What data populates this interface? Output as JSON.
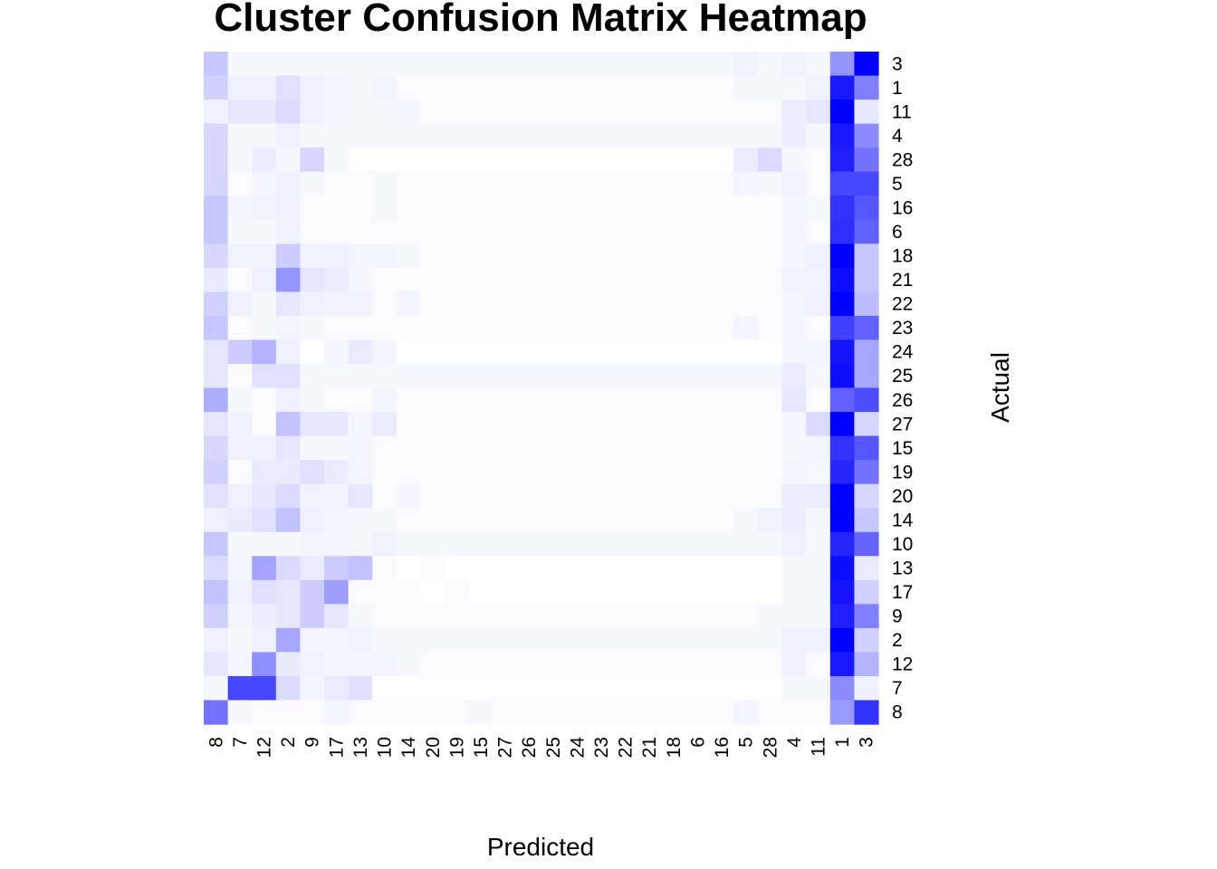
{
  "chart_data": {
    "type": "heatmap",
    "title": "Cluster Confusion Matrix Heatmap",
    "xlabel": "Predicted",
    "ylabel": "Actual",
    "x_categories": [
      "8",
      "7",
      "12",
      "2",
      "9",
      "17",
      "13",
      "10",
      "14",
      "20",
      "19",
      "15",
      "27",
      "26",
      "25",
      "24",
      "23",
      "22",
      "21",
      "18",
      "6",
      "16",
      "5",
      "28",
      "4",
      "11",
      "1",
      "3"
    ],
    "y_categories": [
      "3",
      "1",
      "11",
      "4",
      "28",
      "5",
      "16",
      "6",
      "18",
      "21",
      "22",
      "23",
      "24",
      "25",
      "26",
      "27",
      "15",
      "19",
      "20",
      "14",
      "10",
      "13",
      "17",
      "9",
      "2",
      "12",
      "7",
      "8"
    ],
    "color_scale": {
      "low": "#ffffff",
      "high": "#0000ff",
      "min": 0,
      "max": 1
    },
    "values": [
      [
        0.22,
        0.03,
        0.03,
        0.03,
        0.03,
        0.03,
        0.03,
        0.03,
        0.03,
        0.03,
        0.03,
        0.03,
        0.03,
        0.03,
        0.03,
        0.03,
        0.03,
        0.03,
        0.03,
        0.03,
        0.03,
        0.03,
        0.05,
        0.03,
        0.05,
        0.03,
        0.42,
        1.0
      ],
      [
        0.18,
        0.06,
        0.06,
        0.12,
        0.06,
        0.04,
        0.03,
        0.04,
        0.02,
        0.02,
        0.02,
        0.02,
        0.02,
        0.02,
        0.02,
        0.02,
        0.02,
        0.02,
        0.02,
        0.02,
        0.02,
        0.02,
        0.03,
        0.03,
        0.03,
        0.05,
        0.9,
        0.5
      ],
      [
        0.06,
        0.1,
        0.1,
        0.14,
        0.06,
        0.04,
        0.03,
        0.03,
        0.04,
        0.02,
        0.02,
        0.02,
        0.02,
        0.02,
        0.02,
        0.02,
        0.02,
        0.02,
        0.02,
        0.02,
        0.02,
        0.02,
        0.02,
        0.02,
        0.07,
        0.1,
        1.0,
        0.1
      ],
      [
        0.16,
        0.03,
        0.03,
        0.06,
        0.03,
        0.03,
        0.03,
        0.03,
        0.03,
        0.03,
        0.03,
        0.03,
        0.03,
        0.03,
        0.03,
        0.03,
        0.03,
        0.03,
        0.03,
        0.03,
        0.03,
        0.03,
        0.03,
        0.03,
        0.07,
        0.03,
        0.9,
        0.45
      ],
      [
        0.16,
        0.03,
        0.07,
        0.03,
        0.16,
        0.03,
        0.0,
        0.0,
        0.0,
        0.0,
        0.0,
        0.0,
        0.0,
        0.0,
        0.0,
        0.0,
        0.0,
        0.0,
        0.0,
        0.0,
        0.0,
        0.0,
        0.08,
        0.14,
        0.03,
        0.02,
        0.88,
        0.55
      ],
      [
        0.16,
        0.02,
        0.04,
        0.06,
        0.03,
        0.02,
        0.02,
        0.03,
        0.02,
        0.02,
        0.02,
        0.02,
        0.02,
        0.02,
        0.02,
        0.02,
        0.02,
        0.02,
        0.02,
        0.02,
        0.02,
        0.02,
        0.04,
        0.03,
        0.05,
        0.02,
        0.72,
        0.72
      ],
      [
        0.22,
        0.04,
        0.05,
        0.06,
        0.02,
        0.02,
        0.02,
        0.03,
        0.02,
        0.02,
        0.02,
        0.02,
        0.02,
        0.02,
        0.02,
        0.02,
        0.02,
        0.02,
        0.02,
        0.02,
        0.02,
        0.02,
        0.02,
        0.02,
        0.04,
        0.03,
        0.8,
        0.66
      ],
      [
        0.22,
        0.03,
        0.03,
        0.05,
        0.02,
        0.02,
        0.02,
        0.02,
        0.02,
        0.02,
        0.02,
        0.02,
        0.02,
        0.02,
        0.02,
        0.02,
        0.02,
        0.02,
        0.02,
        0.02,
        0.02,
        0.02,
        0.02,
        0.02,
        0.04,
        0.02,
        0.82,
        0.62
      ],
      [
        0.16,
        0.05,
        0.05,
        0.2,
        0.05,
        0.06,
        0.04,
        0.04,
        0.03,
        0.02,
        0.02,
        0.02,
        0.02,
        0.02,
        0.02,
        0.02,
        0.02,
        0.02,
        0.02,
        0.02,
        0.02,
        0.02,
        0.02,
        0.02,
        0.04,
        0.06,
        1.0,
        0.22
      ],
      [
        0.08,
        0.02,
        0.06,
        0.42,
        0.1,
        0.08,
        0.03,
        0.02,
        0.02,
        0.02,
        0.02,
        0.02,
        0.02,
        0.02,
        0.02,
        0.02,
        0.02,
        0.02,
        0.02,
        0.02,
        0.02,
        0.02,
        0.02,
        0.02,
        0.05,
        0.05,
        0.95,
        0.22
      ],
      [
        0.18,
        0.06,
        0.03,
        0.1,
        0.06,
        0.05,
        0.05,
        0.02,
        0.04,
        0.02,
        0.02,
        0.02,
        0.02,
        0.02,
        0.02,
        0.02,
        0.02,
        0.02,
        0.02,
        0.02,
        0.02,
        0.02,
        0.02,
        0.02,
        0.04,
        0.06,
        1.0,
        0.26
      ],
      [
        0.22,
        0.02,
        0.03,
        0.04,
        0.03,
        0.02,
        0.02,
        0.02,
        0.02,
        0.02,
        0.02,
        0.02,
        0.02,
        0.02,
        0.02,
        0.02,
        0.02,
        0.02,
        0.02,
        0.02,
        0.02,
        0.02,
        0.04,
        0.02,
        0.04,
        0.02,
        0.75,
        0.62
      ],
      [
        0.1,
        0.2,
        0.3,
        0.06,
        0.0,
        0.04,
        0.08,
        0.04,
        0.0,
        0.0,
        0.0,
        0.0,
        0.0,
        0.0,
        0.0,
        0.0,
        0.0,
        0.0,
        0.0,
        0.0,
        0.0,
        0.0,
        0.0,
        0.0,
        0.04,
        0.04,
        0.92,
        0.35
      ],
      [
        0.1,
        0.02,
        0.12,
        0.12,
        0.03,
        0.03,
        0.03,
        0.03,
        0.03,
        0.03,
        0.03,
        0.03,
        0.03,
        0.03,
        0.03,
        0.03,
        0.03,
        0.03,
        0.03,
        0.03,
        0.03,
        0.03,
        0.03,
        0.03,
        0.08,
        0.03,
        0.95,
        0.35
      ],
      [
        0.32,
        0.03,
        0.02,
        0.06,
        0.03,
        0.02,
        0.02,
        0.04,
        0.02,
        0.02,
        0.02,
        0.02,
        0.02,
        0.02,
        0.02,
        0.02,
        0.02,
        0.02,
        0.02,
        0.02,
        0.02,
        0.02,
        0.02,
        0.02,
        0.1,
        0.02,
        0.62,
        0.7
      ],
      [
        0.1,
        0.06,
        0.02,
        0.24,
        0.1,
        0.1,
        0.04,
        0.08,
        0.02,
        0.02,
        0.02,
        0.02,
        0.02,
        0.02,
        0.02,
        0.02,
        0.02,
        0.02,
        0.02,
        0.02,
        0.02,
        0.02,
        0.02,
        0.02,
        0.04,
        0.14,
        1.0,
        0.16
      ],
      [
        0.16,
        0.06,
        0.06,
        0.1,
        0.03,
        0.03,
        0.04,
        0.02,
        0.02,
        0.02,
        0.02,
        0.02,
        0.02,
        0.02,
        0.02,
        0.02,
        0.02,
        0.02,
        0.02,
        0.02,
        0.02,
        0.02,
        0.02,
        0.02,
        0.03,
        0.04,
        0.8,
        0.66
      ],
      [
        0.18,
        0.02,
        0.08,
        0.08,
        0.12,
        0.08,
        0.04,
        0.02,
        0.02,
        0.02,
        0.02,
        0.02,
        0.02,
        0.02,
        0.02,
        0.02,
        0.02,
        0.02,
        0.02,
        0.02,
        0.02,
        0.02,
        0.02,
        0.02,
        0.04,
        0.03,
        0.85,
        0.55
      ],
      [
        0.12,
        0.06,
        0.1,
        0.14,
        0.05,
        0.05,
        0.1,
        0.02,
        0.04,
        0.02,
        0.02,
        0.02,
        0.02,
        0.02,
        0.02,
        0.02,
        0.02,
        0.02,
        0.02,
        0.02,
        0.02,
        0.02,
        0.02,
        0.02,
        0.07,
        0.07,
        1.0,
        0.16
      ],
      [
        0.06,
        0.08,
        0.12,
        0.24,
        0.06,
        0.04,
        0.03,
        0.03,
        0.02,
        0.02,
        0.02,
        0.02,
        0.02,
        0.02,
        0.02,
        0.02,
        0.02,
        0.02,
        0.02,
        0.02,
        0.02,
        0.02,
        0.03,
        0.05,
        0.07,
        0.03,
        1.0,
        0.22
      ],
      [
        0.22,
        0.03,
        0.03,
        0.03,
        0.04,
        0.04,
        0.03,
        0.05,
        0.03,
        0.03,
        0.03,
        0.03,
        0.03,
        0.03,
        0.03,
        0.03,
        0.03,
        0.03,
        0.03,
        0.03,
        0.03,
        0.03,
        0.03,
        0.03,
        0.06,
        0.03,
        0.85,
        0.6
      ],
      [
        0.14,
        0.04,
        0.36,
        0.14,
        0.08,
        0.2,
        0.24,
        0.02,
        0.0,
        0.02,
        0.0,
        0.0,
        0.0,
        0.0,
        0.0,
        0.0,
        0.0,
        0.0,
        0.0,
        0.0,
        0.0,
        0.0,
        0.0,
        0.0,
        0.03,
        0.03,
        0.95,
        0.08
      ],
      [
        0.24,
        0.06,
        0.12,
        0.1,
        0.2,
        0.38,
        0.02,
        0.02,
        0.02,
        0.0,
        0.02,
        0.0,
        0.0,
        0.0,
        0.0,
        0.0,
        0.0,
        0.0,
        0.0,
        0.0,
        0.0,
        0.0,
        0.0,
        0.0,
        0.03,
        0.03,
        0.92,
        0.18
      ],
      [
        0.18,
        0.04,
        0.07,
        0.1,
        0.2,
        0.1,
        0.03,
        0.02,
        0.02,
        0.02,
        0.02,
        0.02,
        0.02,
        0.02,
        0.02,
        0.02,
        0.02,
        0.02,
        0.02,
        0.02,
        0.02,
        0.02,
        0.02,
        0.03,
        0.03,
        0.03,
        0.88,
        0.5
      ],
      [
        0.06,
        0.03,
        0.06,
        0.35,
        0.04,
        0.04,
        0.05,
        0.03,
        0.03,
        0.03,
        0.03,
        0.03,
        0.03,
        0.03,
        0.03,
        0.03,
        0.03,
        0.03,
        0.03,
        0.03,
        0.03,
        0.03,
        0.03,
        0.03,
        0.06,
        0.06,
        1.0,
        0.18
      ],
      [
        0.1,
        0.04,
        0.44,
        0.08,
        0.05,
        0.04,
        0.04,
        0.04,
        0.03,
        0.02,
        0.02,
        0.02,
        0.02,
        0.02,
        0.02,
        0.02,
        0.02,
        0.02,
        0.02,
        0.02,
        0.02,
        0.02,
        0.02,
        0.02,
        0.06,
        0.02,
        0.9,
        0.3
      ],
      [
        0.03,
        0.72,
        0.72,
        0.14,
        0.04,
        0.08,
        0.12,
        0.0,
        0.0,
        0.0,
        0.0,
        0.0,
        0.0,
        0.0,
        0.0,
        0.0,
        0.0,
        0.0,
        0.0,
        0.0,
        0.0,
        0.0,
        0.0,
        0.0,
        0.03,
        0.03,
        0.45,
        0.06
      ],
      [
        0.55,
        0.03,
        0.02,
        0.02,
        0.02,
        0.04,
        0.02,
        0.02,
        0.02,
        0.02,
        0.02,
        0.03,
        0.02,
        0.02,
        0.02,
        0.02,
        0.02,
        0.02,
        0.02,
        0.02,
        0.02,
        0.02,
        0.04,
        0.02,
        0.02,
        0.02,
        0.4,
        0.8
      ]
    ]
  }
}
